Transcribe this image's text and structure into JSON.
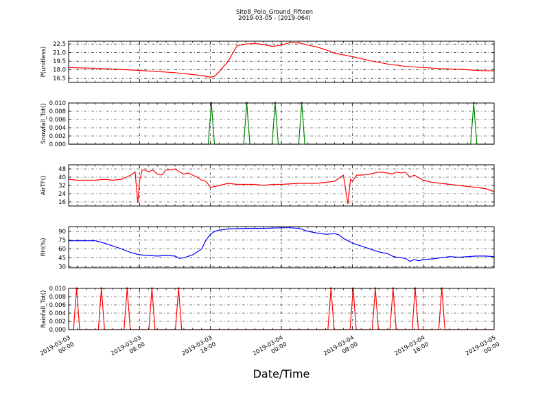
{
  "header": {
    "title": "Site8_Polo_Ground_Fifteen",
    "subtitle": "2019-03-05 - (2019-064)"
  },
  "x_axis": {
    "label": "Date/Time",
    "ticks": [
      {
        "line1": "2019-03-03",
        "line2": "00:00"
      },
      {
        "line1": "2019-03-03",
        "line2": "08:00"
      },
      {
        "line1": "2019-03-03",
        "line2": "16:00"
      },
      {
        "line1": "2019-03-04",
        "line2": "00:00"
      },
      {
        "line1": "2019-03-04",
        "line2": "08:00"
      },
      {
        "line1": "2019-03-04",
        "line2": "16:00"
      },
      {
        "line1": "2019-03-05",
        "line2": "00:00"
      }
    ]
  },
  "chart_data": [
    {
      "type": "line",
      "ylabel": "P(unitless)",
      "ylim": [
        15.8,
        23.0
      ],
      "yticks": [
        "16.5",
        "18.0",
        "19.5",
        "21.0",
        "22.5"
      ],
      "ytick_values": [
        16.5,
        18.0,
        19.5,
        21.0,
        22.5
      ],
      "grid": true,
      "color": "#ff0000",
      "x_hours": [
        0,
        4,
        8,
        12,
        15,
        16,
        16.5,
        17,
        18,
        19,
        20,
        21,
        22,
        23,
        24,
        25,
        26,
        27,
        28,
        29,
        30,
        32,
        34,
        36,
        38,
        40,
        42,
        44,
        46,
        48
      ],
      "values": [
        18.4,
        18.2,
        17.9,
        17.5,
        17.0,
        16.7,
        16.9,
        17.7,
        19.5,
        22.2,
        22.5,
        22.6,
        22.4,
        22.1,
        22.3,
        22.8,
        22.7,
        22.3,
        22.0,
        21.5,
        20.9,
        20.3,
        19.6,
        19.0,
        18.6,
        18.4,
        18.2,
        18.1,
        17.9,
        17.8
      ]
    },
    {
      "type": "line",
      "ylabel": "Snowfall_Tot()",
      "ylim": [
        0.0,
        0.01
      ],
      "yticks": [
        "0.000",
        "0.002",
        "0.004",
        "0.006",
        "0.008",
        "0.010"
      ],
      "ytick_values": [
        0.0,
        0.002,
        0.004,
        0.006,
        0.008,
        0.01
      ],
      "grid": true,
      "color": "#008000",
      "spike_hours": [
        16.1,
        20.1,
        23.3,
        26.3,
        45.7
      ],
      "spike_value": 0.01,
      "baseline": 0.0
    },
    {
      "type": "line",
      "ylabel": "AirTF()",
      "ylim": [
        12,
        52
      ],
      "yticks": [
        "16",
        "24",
        "32",
        "40",
        "48"
      ],
      "ytick_values": [
        16,
        24,
        32,
        40,
        48
      ],
      "grid": true,
      "color": "#ff0000",
      "x_hours": [
        0,
        1,
        2,
        3,
        4,
        5,
        6,
        7,
        7.5,
        7.8,
        8,
        8.3,
        8.6,
        9,
        9.5,
        10,
        10.5,
        11,
        11.5,
        12,
        12.5,
        13,
        13.5,
        14,
        14.5,
        15,
        15.5,
        16,
        17,
        18,
        19,
        20,
        21,
        22,
        23,
        24,
        26,
        28,
        30,
        31,
        31.5,
        31.8,
        32,
        32.5,
        33,
        34,
        35,
        36,
        36.5,
        37,
        37.5,
        38,
        38.5,
        39,
        40,
        41,
        42,
        43,
        44,
        45,
        46,
        47,
        48
      ],
      "values": [
        38,
        37,
        37,
        37,
        38,
        37,
        38,
        42,
        45,
        15,
        36,
        47,
        47,
        45,
        47,
        43,
        42,
        47,
        47,
        48,
        45,
        43,
        44,
        42,
        40,
        37,
        36,
        30,
        32,
        34,
        33,
        33,
        33,
        32,
        33,
        33,
        34,
        34,
        36,
        42,
        14,
        38,
        36,
        42,
        42,
        43,
        45,
        44,
        43,
        45,
        44,
        45,
        40,
        42,
        37,
        35,
        34,
        33,
        32,
        31,
        30,
        29,
        26
      ]
    },
    {
      "type": "line",
      "ylabel": "RH(%)",
      "ylim": [
        28,
        98
      ],
      "yticks": [
        "30",
        "45",
        "60",
        "75",
        "90"
      ],
      "ytick_values": [
        30,
        45,
        60,
        75,
        90
      ],
      "grid": true,
      "color": "#0000ff",
      "x_hours": [
        0,
        1,
        2,
        3,
        4,
        5,
        6,
        7,
        8,
        9,
        10,
        11,
        12,
        12.5,
        13,
        14,
        15,
        15.5,
        16,
        16.5,
        17,
        18,
        20,
        22,
        24,
        25,
        26,
        27,
        28,
        29,
        30,
        30.5,
        31,
        32,
        33,
        34,
        35,
        36,
        36.5,
        37,
        38,
        38.5,
        39,
        39.5,
        40,
        41,
        42,
        43,
        44,
        45,
        46,
        47,
        48
      ],
      "values": [
        74,
        74,
        74,
        74,
        70,
        65,
        60,
        54,
        50,
        49,
        48,
        49,
        48,
        44,
        45,
        50,
        60,
        75,
        85,
        90,
        92,
        94,
        95,
        95,
        96,
        96,
        95,
        90,
        87,
        85,
        86,
        84,
        78,
        70,
        65,
        60,
        55,
        52,
        48,
        46,
        44,
        39,
        42,
        40,
        42,
        43,
        45,
        47,
        46,
        47,
        48,
        48,
        47
      ]
    },
    {
      "type": "line",
      "ylabel": "Rainfall_Tot()",
      "ylim": [
        0.0,
        0.01
      ],
      "yticks": [
        "0.000",
        "0.002",
        "0.004",
        "0.006",
        "0.008",
        "0.010"
      ],
      "ytick_values": [
        0.0,
        0.002,
        0.004,
        0.006,
        0.008,
        0.01
      ],
      "grid": true,
      "color": "#ff0000",
      "spike_hours": [
        0.9,
        3.7,
        6.6,
        9.4,
        12.4,
        29.6,
        32.1,
        34.6,
        36.6,
        39.1,
        42.1
      ],
      "spike_value": 0.01,
      "baseline": 0.0
    }
  ]
}
